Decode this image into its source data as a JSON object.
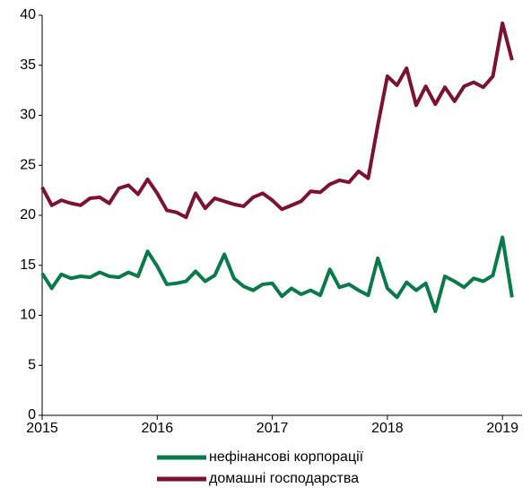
{
  "chart_data": {
    "type": "line",
    "x": [
      2015,
      2015.0833,
      2015.1667,
      2015.25,
      2015.3333,
      2015.4167,
      2015.5,
      2015.5833,
      2015.6667,
      2015.75,
      2015.8333,
      2015.9167,
      2016,
      2016.0833,
      2016.1667,
      2016.25,
      2016.3333,
      2016.4167,
      2016.5,
      2016.5833,
      2016.6667,
      2016.75,
      2016.8333,
      2016.9167,
      2017,
      2017.0833,
      2017.1667,
      2017.25,
      2017.3333,
      2017.4167,
      2017.5,
      2017.5833,
      2017.6667,
      2017.75,
      2017.8333,
      2017.9167,
      2018,
      2018.0833,
      2018.1667,
      2018.25,
      2018.3333,
      2018.4167,
      2018.5,
      2018.5833,
      2018.6667,
      2018.75,
      2018.8333,
      2018.9167,
      2019,
      2019.0833
    ],
    "series": [
      {
        "name": "нефінансові корпорації",
        "color": "#0b7a4b",
        "values": [
          14.2,
          12.7,
          14.1,
          13.7,
          13.9,
          13.8,
          14.3,
          13.9,
          13.8,
          14.3,
          13.9,
          16.4,
          14.9,
          13.1,
          13.2,
          13.4,
          14.4,
          13.4,
          14.0,
          16.1,
          13.7,
          12.9,
          12.5,
          13.1,
          13.2,
          11.9,
          12.7,
          12.1,
          12.5,
          12.0,
          14.6,
          12.8,
          13.1,
          12.5,
          12.0,
          15.7,
          12.7,
          11.8,
          13.3,
          12.5,
          13.2,
          10.4,
          13.9,
          13.4,
          12.8,
          13.7,
          13.4,
          14.0,
          17.8,
          11.8
        ]
      },
      {
        "name": "домашні господарства",
        "color": "#7b1232",
        "values": [
          22.8,
          21.0,
          21.5,
          21.2,
          21.0,
          21.7,
          21.8,
          21.2,
          22.7,
          23.0,
          22.1,
          23.6,
          22.2,
          20.5,
          20.3,
          19.8,
          22.2,
          20.7,
          21.7,
          21.4,
          21.1,
          20.9,
          21.8,
          22.2,
          21.5,
          20.6,
          21.0,
          21.4,
          22.4,
          22.3,
          23.1,
          23.5,
          23.3,
          24.4,
          23.7,
          29.0,
          33.9,
          33.0,
          34.7,
          31.0,
          32.9,
          31.1,
          32.8,
          31.4,
          32.9,
          33.3,
          32.8,
          33.9,
          39.2,
          35.5
        ]
      }
    ],
    "xlim": [
      2015,
      2019.17
    ],
    "xticks": [
      2015,
      2016,
      2017,
      2018,
      2019
    ],
    "ylim": [
      0,
      40
    ],
    "yticks": [
      0,
      5,
      10,
      15,
      20,
      25,
      30,
      35,
      40
    ],
    "grid": false,
    "legend": "bottom"
  }
}
